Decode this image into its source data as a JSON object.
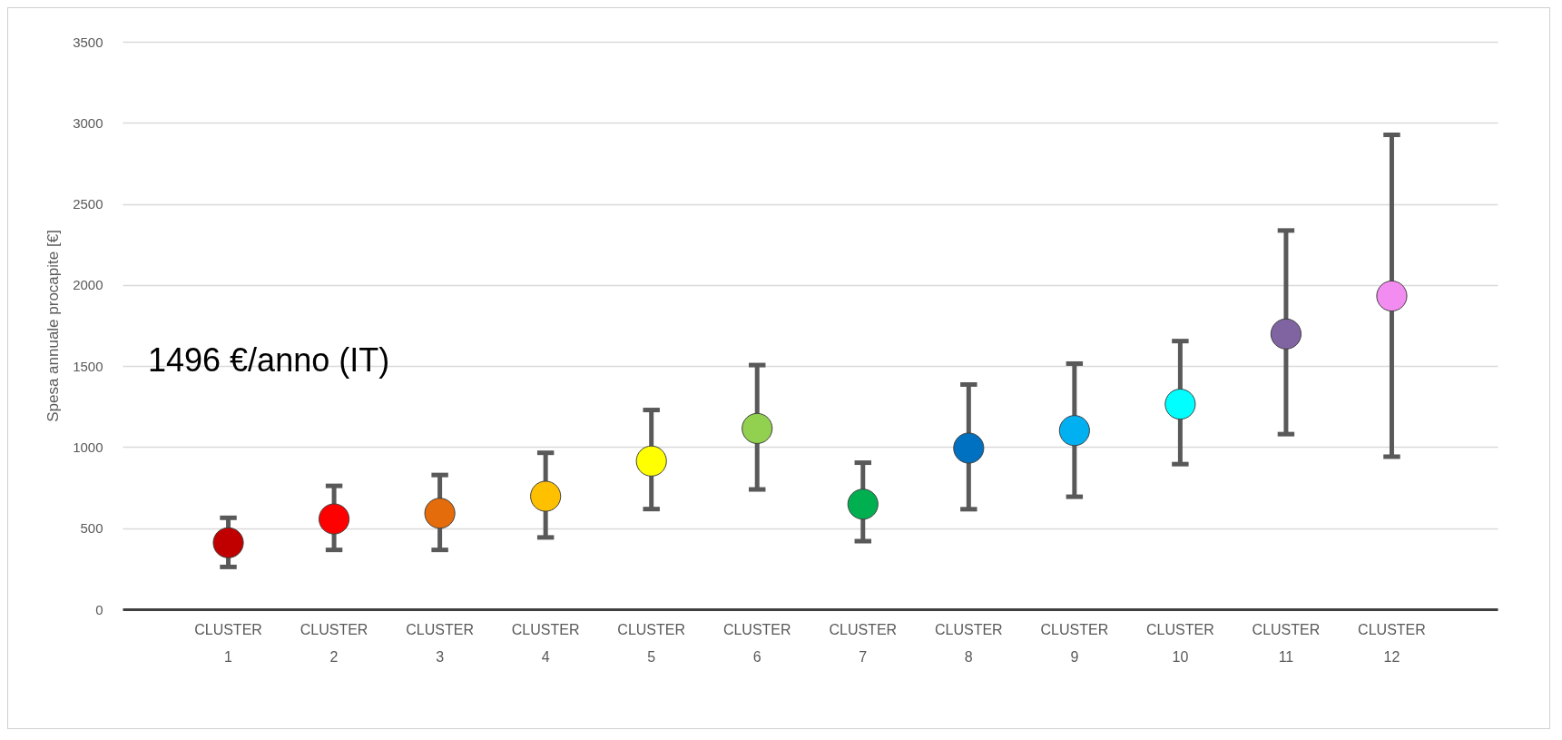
{
  "chart_data": {
    "type": "scatter",
    "ylabel": "Spesa annuale procapite [€]",
    "categories": [
      "CLUSTER 1",
      "CLUSTER 2",
      "CLUSTER 3",
      "CLUSTER 4",
      "CLUSTER 5",
      "CLUSTER 6",
      "CLUSTER 7",
      "CLUSTER 8",
      "CLUSTER 9",
      "CLUSTER 10",
      "CLUSTER 11",
      "CLUSTER 12"
    ],
    "values": [
      410,
      557,
      592,
      697,
      914,
      1115,
      648,
      994,
      1102,
      1265,
      1698,
      1932
    ],
    "errors": [
      [
        261,
        564
      ],
      [
        366,
        761
      ],
      [
        366,
        828
      ],
      [
        443,
        965
      ],
      [
        618,
        1229
      ],
      [
        739,
        1506
      ],
      [
        420,
        904
      ],
      [
        617,
        1386
      ],
      [
        694,
        1515
      ],
      [
        895,
        1654
      ],
      [
        1080,
        2336
      ],
      [
        941,
        2926
      ]
    ],
    "colors": [
      "#c00000",
      "#ff0000",
      "#e46c0a",
      "#ffc000",
      "#ffff00",
      "#92d050",
      "#00b050",
      "#0070c0",
      "#00b0f0",
      "#00ffff",
      "#8064a2",
      "#f38cf0"
    ],
    "ylim": [
      0,
      3500
    ],
    "yticks": [
      0,
      500,
      1000,
      1500,
      2000,
      2500,
      3000,
      3500
    ],
    "grid": "y",
    "marker": "circle",
    "legend": false,
    "annotations": [
      "1496  €/anno  (IT)"
    ]
  }
}
